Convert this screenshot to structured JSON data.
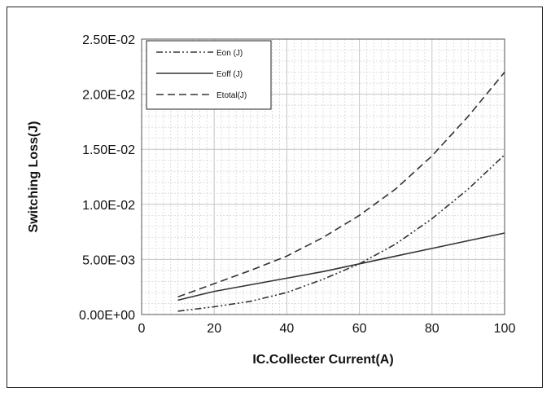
{
  "chart_data": {
    "type": "line",
    "title": "",
    "xlabel": "IC.Collecter Current(A)",
    "ylabel": "Switching Loss(J)",
    "xlim": [
      0,
      100
    ],
    "ylim": [
      0,
      0.025
    ],
    "x_ticks": [
      "0",
      "20",
      "40",
      "60",
      "80",
      "100"
    ],
    "y_ticks": [
      "0.00E+00",
      "5.00E-03",
      "1.00E-02",
      "1.50E-02",
      "2.00E-02",
      "2.50E-02"
    ],
    "grid": true,
    "legend_position": "top-left",
    "series": [
      {
        "name": "Eon (J)",
        "style": "dash-dot-dot",
        "x": [
          10,
          20,
          30,
          40,
          50,
          60,
          70,
          80,
          90,
          100
        ],
        "y": [
          0.0003,
          0.0007,
          0.0012,
          0.002,
          0.0032,
          0.0046,
          0.0064,
          0.0087,
          0.0114,
          0.0145
        ]
      },
      {
        "name": "Eoff (J)",
        "style": "solid",
        "x": [
          10,
          20,
          30,
          40,
          50,
          60,
          70,
          80,
          90,
          100
        ],
        "y": [
          0.0013,
          0.0021,
          0.0027,
          0.0033,
          0.0039,
          0.0046,
          0.0053,
          0.006,
          0.0067,
          0.0074
        ]
      },
      {
        "name": "Etotal(J)",
        "style": "dashed",
        "x": [
          10,
          20,
          30,
          40,
          50,
          60,
          70,
          80,
          90,
          100
        ],
        "y": [
          0.0016,
          0.0028,
          0.004,
          0.0053,
          0.007,
          0.009,
          0.0114,
          0.0144,
          0.018,
          0.022
        ]
      }
    ]
  }
}
